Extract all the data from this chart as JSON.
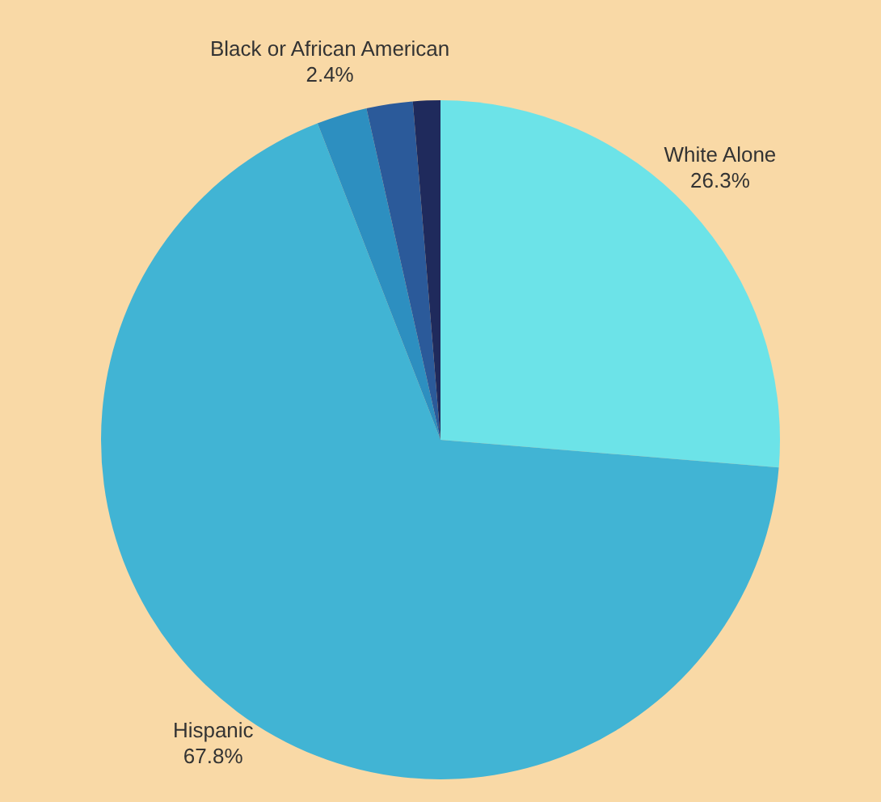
{
  "chart_data": {
    "type": "pie",
    "categories": [
      "White Alone",
      "Hispanic",
      "Black or African American",
      null,
      null
    ],
    "values": [
      26.3,
      67.8,
      2.4,
      2.2,
      1.3
    ],
    "value_labels": [
      "26.3%",
      "67.8%",
      "2.4%",
      null,
      null
    ],
    "colors": [
      "#6ce3e8",
      "#41b4d4",
      "#2d8fc0",
      "#2b5a9a",
      "#1f2a5c"
    ],
    "legend": false
  }
}
